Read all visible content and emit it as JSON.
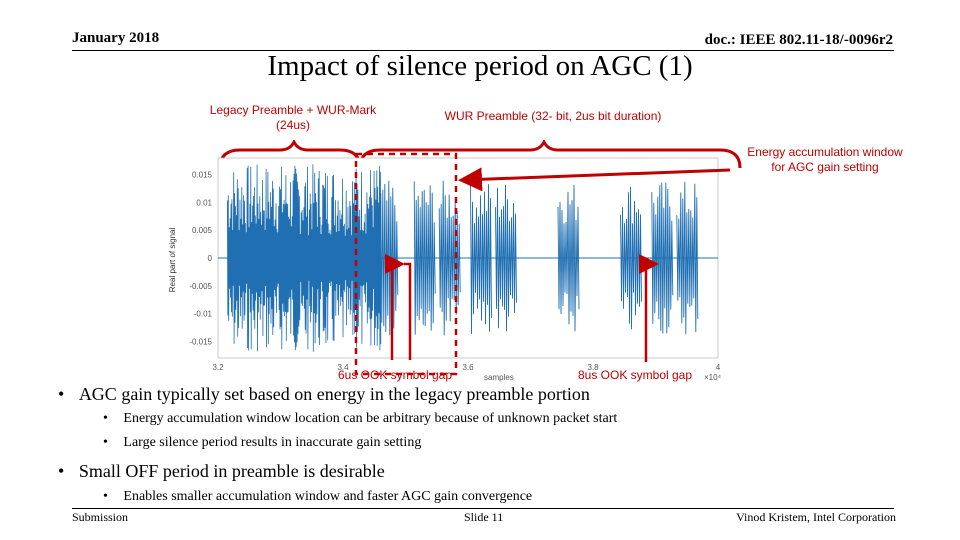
{
  "header": {
    "date": "January 2018",
    "doc_id": "doc.: IEEE 802.11-18/-0096r2"
  },
  "title": "Impact of silence period on AGC (1)",
  "callouts": {
    "legacy": "Legacy Preamble + WUR-Mark\n(24us)",
    "wur": "WUR Preamble (32- bit, 2us bit duration)",
    "energy": "Energy accumulation window\nfor AGC gain setting",
    "gap6": "6us OOK symbol gap",
    "gap8": "8us OOK symbol gap"
  },
  "chart_data": {
    "type": "line",
    "ylabel": "Real part of signal",
    "xlabel": "samples",
    "x_exponent": "×10⁴",
    "xlim": [
      3.2,
      4.0
    ],
    "ylim": [
      -0.018,
      0.018
    ],
    "x_ticks": [
      "3.2",
      "3.4",
      "3.6",
      "3.8",
      "4"
    ],
    "y_ticks": [
      "0.015",
      "0.01",
      "0.005",
      "0",
      "-0.005",
      "-0.01",
      "-0.015"
    ],
    "legacy_end": 3.46,
    "wur_bursts": [
      3.47,
      3.53,
      3.57,
      3.62,
      3.66,
      3.76,
      3.86,
      3.91,
      3.95
    ]
  },
  "bullets": [
    {
      "text": "AGC gain typically set based on energy in the legacy preamble portion",
      "sub": [
        "Energy accumulation window location can be arbitrary because of unknown packet start",
        "Large silence period results in inaccurate gain setting"
      ]
    },
    {
      "text": "Small OFF period in preamble is desirable",
      "sub": [
        "Enables smaller accumulation window and faster AGC gain convergence"
      ]
    }
  ],
  "footer": {
    "left": "Submission",
    "center": "Slide 11",
    "right": "Vinod Kristem, Intel Corporation"
  }
}
